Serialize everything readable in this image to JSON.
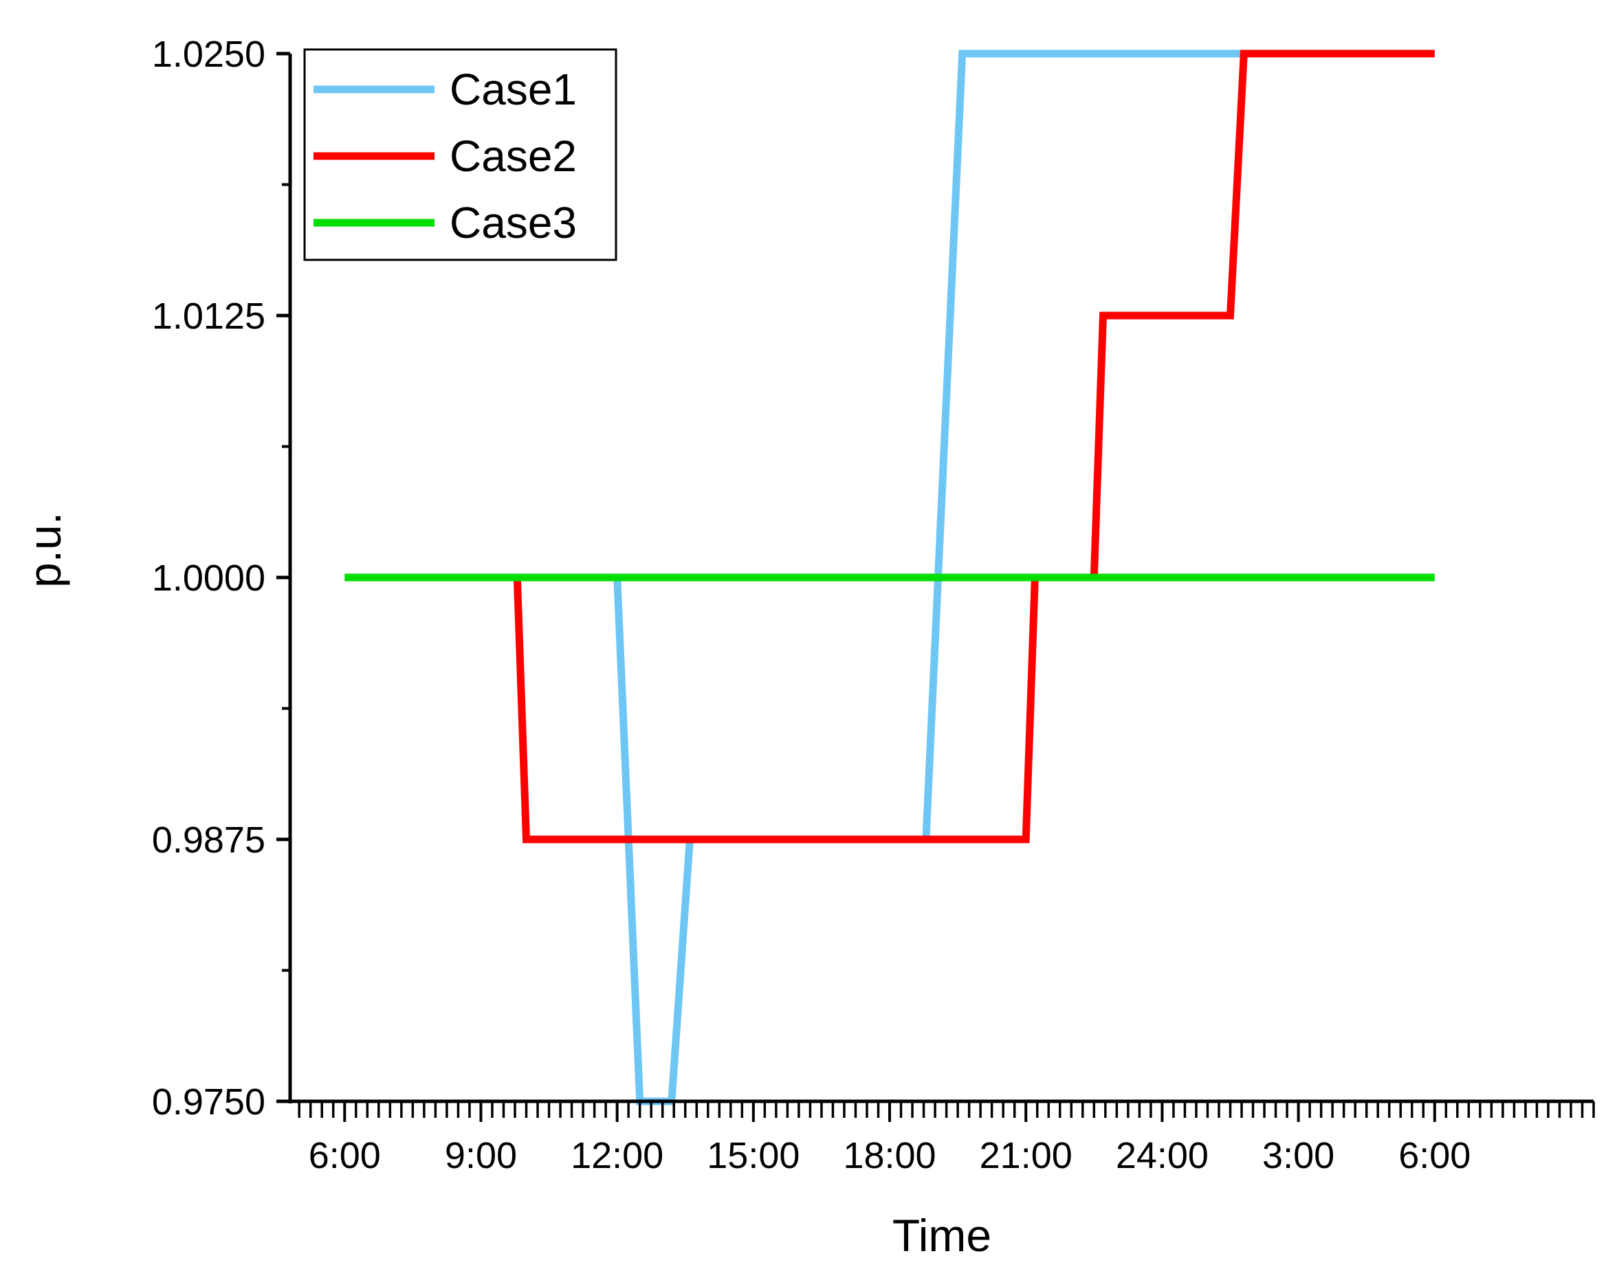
{
  "chart_data": {
    "type": "line",
    "title": "",
    "xlabel": "Time",
    "ylabel": "p.u.",
    "ylim": [
      0.975,
      1.025
    ],
    "xlim": [
      4.8,
      33.5
    ],
    "y_ticks": [
      "0.9750",
      "0.9875",
      "1.0000",
      "1.0125",
      "1.0250"
    ],
    "y_tick_values": [
      0.975,
      0.9875,
      1.0,
      1.0125,
      1.025
    ],
    "x_ticks": [
      "6:00",
      "9:00",
      "12:00",
      "15:00",
      "18:00",
      "21:00",
      "24:00",
      "3:00",
      "6:00"
    ],
    "x_tick_values": [
      6,
      9,
      12,
      15,
      18,
      21,
      24,
      27,
      30
    ],
    "grid": false,
    "legend_position": "top-left",
    "series": [
      {
        "name": "Case1",
        "color": "#6ec6f5",
        "points": [
          [
            12,
            1.0
          ],
          [
            12.5,
            0.975
          ],
          [
            13.2,
            0.975
          ],
          [
            13.6,
            0.9875
          ],
          [
            18.8,
            0.9875
          ],
          [
            19.6,
            1.025
          ],
          [
            30,
            1.025
          ]
        ]
      },
      {
        "name": "Case2",
        "color": "#ff0000",
        "points": [
          [
            9.8,
            1.0
          ],
          [
            10.0,
            0.9875
          ],
          [
            21.0,
            0.9875
          ],
          [
            21.2,
            1.0
          ],
          [
            22.5,
            1.0
          ],
          [
            22.7,
            1.0125
          ],
          [
            25.5,
            1.0125
          ],
          [
            25.8,
            1.025
          ],
          [
            30,
            1.025
          ]
        ]
      },
      {
        "name": "Case3",
        "color": "#00dd00",
        "points": [
          [
            6,
            1.0
          ],
          [
            30,
            1.0
          ]
        ]
      }
    ]
  }
}
